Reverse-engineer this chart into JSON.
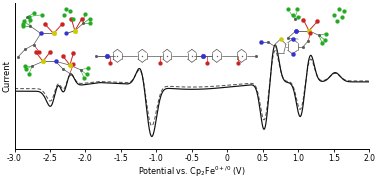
{
  "xlim": [
    -3.0,
    2.0
  ],
  "xlabel": "Potential vs. Cp₂Fe⁰⁺⁄° (V)",
  "ylabel": "Current",
  "xticks": [
    -3.0,
    -2.5,
    -2.0,
    -1.5,
    -1.0,
    -0.5,
    0.0,
    0.5,
    1.0,
    1.5,
    2.0
  ],
  "xtick_labels": [
    "-3.0",
    "-2.5",
    "-2.0",
    "-1.5",
    "-1.0",
    "-0.5",
    "0",
    "0.5",
    "1.0",
    "1.5",
    "2.0"
  ],
  "background": "#ffffff",
  "line_color_solid": "#111111",
  "line_color_dashed": "#555555",
  "figsize": [
    3.78,
    1.82
  ],
  "dpi": 100
}
